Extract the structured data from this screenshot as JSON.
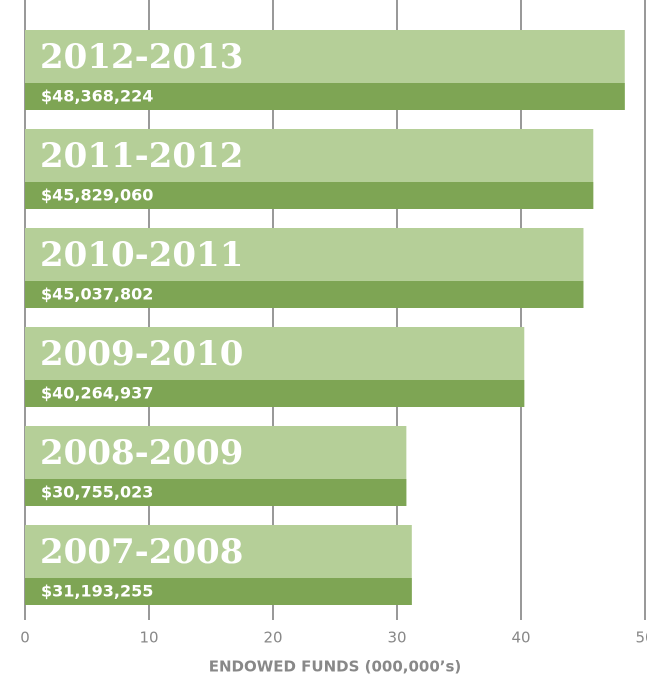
{
  "chart_data": {
    "type": "barh",
    "x_label": "ENDOWED FUNDS (000,000’s)",
    "categories": [
      "2012-2013",
      "2011-2012",
      "2010-2011",
      "2009-2010",
      "2008-2009",
      "2007-2008"
    ],
    "values": [
      48.368224,
      45.82906,
      45.037802,
      40.264937,
      30.755023,
      31.193255
    ],
    "value_labels": [
      "$48,368,224",
      "$45,829,060",
      "$45,037,802",
      "$40,264,937",
      "$30,755,023",
      "$31,193,255"
    ],
    "color": "#b5cf98",
    "band_color": "#7ea554",
    "xlim": [
      0,
      50
    ],
    "xticks": [
      0,
      10,
      20,
      30,
      40,
      50
    ],
    "grid": true
  }
}
